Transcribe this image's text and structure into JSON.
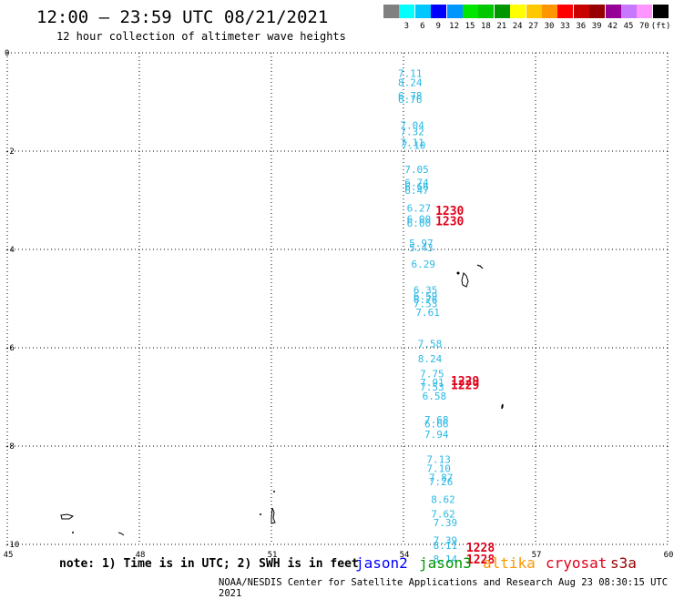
{
  "header": {
    "title": "12:00 – 23:59 UTC 08/21/2021",
    "subtitle": "12 hour collection of altimeter wave heights"
  },
  "legend": [
    {
      "color": "#808080",
      "label": ""
    },
    {
      "color": "#00ffff",
      "label": "3"
    },
    {
      "color": "#00c8ff",
      "label": "6"
    },
    {
      "color": "#0000ff",
      "label": "9"
    },
    {
      "color": "#0096ff",
      "label": "12"
    },
    {
      "color": "#00e600",
      "label": "15"
    },
    {
      "color": "#00c800",
      "label": "18"
    },
    {
      "color": "#009600",
      "label": "21"
    },
    {
      "color": "#ffff00",
      "label": "24"
    },
    {
      "color": "#ffc800",
      "label": "27"
    },
    {
      "color": "#ff9600",
      "label": "30"
    },
    {
      "color": "#ff0000",
      "label": "33"
    },
    {
      "color": "#c80000",
      "label": "36"
    },
    {
      "color": "#960000",
      "label": "39"
    },
    {
      "color": "#960096",
      "label": "42"
    },
    {
      "color": "#c878ff",
      "label": "45"
    },
    {
      "color": "#ff96ff",
      "label": "70"
    },
    {
      "color": "#000000",
      "label": "(ft)"
    }
  ],
  "map": {
    "lon_ticks": [
      "45",
      "48",
      "51",
      "54",
      "57",
      "60"
    ],
    "lat_ticks": [
      "0",
      "-2",
      "-4",
      "-6",
      "-8",
      "-10"
    ],
    "wave_color": "#29b8e6",
    "time_color": "#e0001a",
    "waves": [
      {
        "v": "7.11",
        "lon": 54.0,
        "lat": -0.42
      },
      {
        "v": "8.24",
        "lon": 54.0,
        "lat": -0.6
      },
      {
        "v": "6.78",
        "lon": 54.0,
        "lat": -0.87
      },
      {
        "v": "6.76",
        "lon": 54.0,
        "lat": -0.94
      },
      {
        "v": "7.04",
        "lon": 54.05,
        "lat": -1.47
      },
      {
        "v": "7.32",
        "lon": 54.05,
        "lat": -1.6
      },
      {
        "v": "7.11",
        "lon": 54.05,
        "lat": -1.82
      },
      {
        "v": "7.10",
        "lon": 54.08,
        "lat": -1.88
      },
      {
        "v": "7.05",
        "lon": 54.15,
        "lat": -2.37
      },
      {
        "v": "6.74",
        "lon": 54.15,
        "lat": -2.64
      },
      {
        "v": "6.66",
        "lon": 54.15,
        "lat": -2.72
      },
      {
        "v": "6.47",
        "lon": 54.15,
        "lat": -2.8
      },
      {
        "v": "6.27",
        "lon": 54.2,
        "lat": -3.16
      },
      {
        "v": "6.00",
        "lon": 54.2,
        "lat": -3.38
      },
      {
        "v": "6.00",
        "lon": 54.2,
        "lat": -3.46
      },
      {
        "v": "5.97",
        "lon": 54.25,
        "lat": -3.87
      },
      {
        "v": "5.43",
        "lon": 54.25,
        "lat": -3.96
      },
      {
        "v": "6.29",
        "lon": 54.3,
        "lat": -4.3
      },
      {
        "v": "6.35",
        "lon": 54.35,
        "lat": -4.82
      },
      {
        "v": "6.59",
        "lon": 54.35,
        "lat": -4.94
      },
      {
        "v": "6.76",
        "lon": 54.35,
        "lat": -5.02
      },
      {
        "v": "7.53",
        "lon": 54.35,
        "lat": -5.1
      },
      {
        "v": "7.61",
        "lon": 54.4,
        "lat": -5.28
      },
      {
        "v": "7.58",
        "lon": 54.45,
        "lat": -5.92
      },
      {
        "v": "8.24",
        "lon": 54.45,
        "lat": -6.22
      },
      {
        "v": "7.75",
        "lon": 54.5,
        "lat": -6.53
      },
      {
        "v": "7.91",
        "lon": 54.5,
        "lat": -6.7
      },
      {
        "v": "7.53",
        "lon": 54.5,
        "lat": -6.8
      },
      {
        "v": "6.58",
        "lon": 54.55,
        "lat": -6.98
      },
      {
        "v": "7.68",
        "lon": 54.6,
        "lat": -7.46
      },
      {
        "v": "6.66",
        "lon": 54.6,
        "lat": -7.55
      },
      {
        "v": "7.94",
        "lon": 54.6,
        "lat": -7.76
      },
      {
        "v": "7.13",
        "lon": 54.65,
        "lat": -8.27
      },
      {
        "v": "7.10",
        "lon": 54.65,
        "lat": -8.45
      },
      {
        "v": "7.87",
        "lon": 54.7,
        "lat": -8.64
      },
      {
        "v": "7.26",
        "lon": 54.7,
        "lat": -8.72
      },
      {
        "v": "8.62",
        "lon": 54.75,
        "lat": -9.08
      },
      {
        "v": "7.62",
        "lon": 54.75,
        "lat": -9.38
      },
      {
        "v": "7.39",
        "lon": 54.8,
        "lat": -9.56
      },
      {
        "v": "7.39",
        "lon": 54.8,
        "lat": -9.92
      },
      {
        "v": "8.11",
        "lon": 54.8,
        "lat": -10.02
      },
      {
        "v": "8.14",
        "lon": 54.8,
        "lat": -10.3
      }
    ],
    "times": [
      {
        "v": "1230",
        "lon": 54.85,
        "lat": -3.2
      },
      {
        "v": "1230",
        "lon": 54.85,
        "lat": -3.42
      },
      {
        "v": "1229",
        "lon": 55.2,
        "lat": -6.67
      },
      {
        "v": "1229",
        "lon": 55.2,
        "lat": -6.75
      },
      {
        "v": "1228",
        "lon": 55.55,
        "lat": -10.06
      },
      {
        "v": "1228",
        "lon": 55.55,
        "lat": -10.3
      }
    ]
  },
  "footer": {
    "note": "note: 1) Time is in UTC; 2) SWH is in feet",
    "satellites": [
      {
        "name": "jason2",
        "color": "#0000ff"
      },
      {
        "name": "jason3",
        "color": "#009600"
      },
      {
        "name": "altika",
        "color": "#ff9600"
      },
      {
        "name": "cryosat",
        "color": "#e0001a"
      },
      {
        "name": "s3a",
        "color": "#960000"
      }
    ],
    "credit": "NOAA/NESDIS Center for Satellite Applications and Research    Aug 23 08:30:15 UTC 2021"
  }
}
